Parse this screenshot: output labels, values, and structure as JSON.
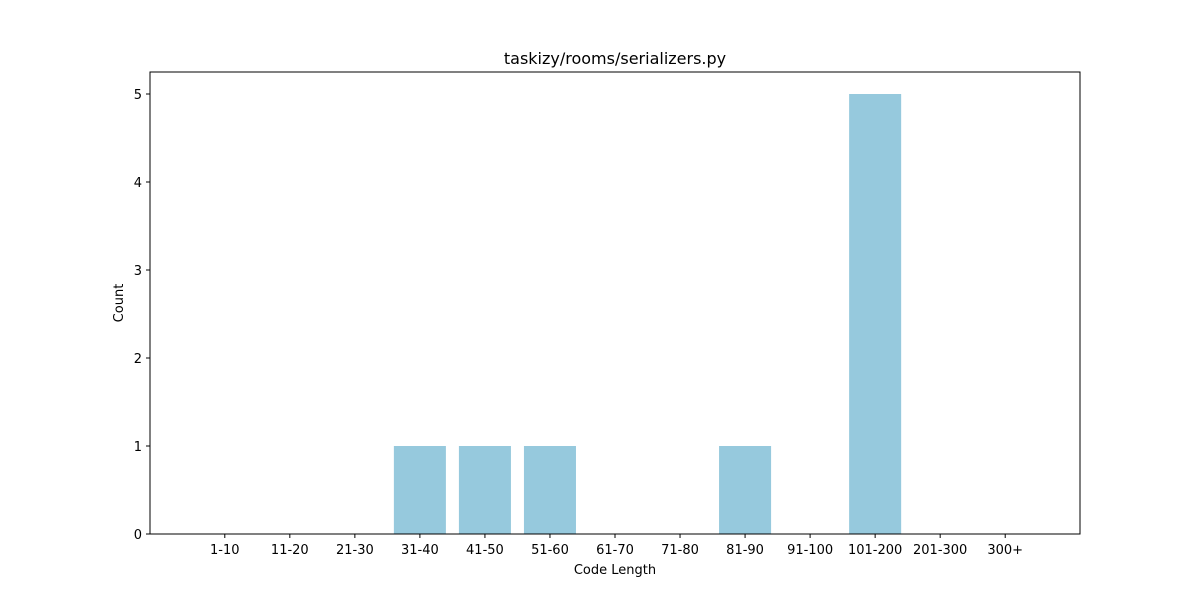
{
  "chart_data": {
    "type": "bar",
    "title": "taskizy/rooms/serializers.py",
    "xlabel": "Code Length",
    "ylabel": "Count",
    "categories": [
      "1-10",
      "11-20",
      "21-30",
      "31-40",
      "41-50",
      "51-60",
      "61-70",
      "71-80",
      "81-90",
      "91-100",
      "101-200",
      "201-300",
      "300+"
    ],
    "values": [
      0,
      0,
      0,
      1,
      1,
      1,
      0,
      0,
      1,
      0,
      5,
      0,
      0
    ],
    "ylim": [
      0,
      5.25
    ],
    "yticks": [
      0,
      1,
      2,
      3,
      4,
      5
    ],
    "bar_color": "#96c9dd",
    "grid": false,
    "legend": "none"
  }
}
